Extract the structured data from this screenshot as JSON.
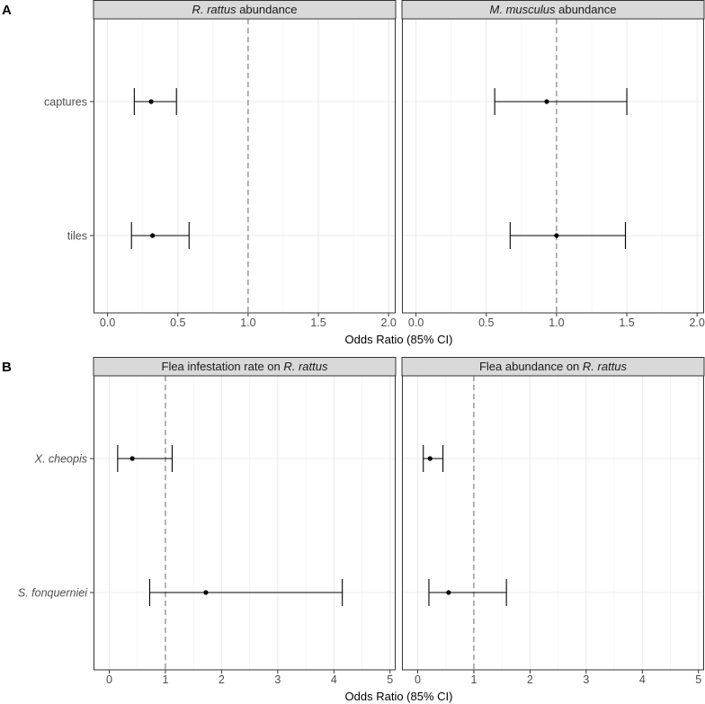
{
  "colors": {
    "strip_fill": "#d9d9d9",
    "panel_border": "#333333",
    "grid_major": "#ebebeb",
    "grid_minor": "#f5f5f5",
    "ref_line": "#8c8c8c",
    "mark": "#000000"
  },
  "chart_data": [
    {
      "section": "A",
      "type": "forest",
      "xlabel": "Odds Ratio (85% CI)",
      "categories": [
        "captures",
        "tiles"
      ],
      "category_italic": false,
      "xlim": [
        -0.1,
        2.05
      ],
      "xticks": [
        "0.0",
        "0.5",
        "1.0",
        "1.5",
        "2.0"
      ],
      "xtick_values": [
        0,
        0.5,
        1,
        1.5,
        2
      ],
      "reference": 1,
      "panels": [
        {
          "title_parts": [
            {
              "text": "R. rattus",
              "italic": true
            },
            {
              "text": " abundance",
              "italic": false
            }
          ],
          "points": [
            {
              "category": "captures",
              "estimate": 0.31,
              "low": 0.19,
              "high": 0.49
            },
            {
              "category": "tiles",
              "estimate": 0.32,
              "low": 0.17,
              "high": 0.58
            }
          ]
        },
        {
          "title_parts": [
            {
              "text": "M. musculus",
              "italic": true
            },
            {
              "text": " abundance",
              "italic": false
            }
          ],
          "points": [
            {
              "category": "captures",
              "estimate": 0.93,
              "low": 0.56,
              "high": 1.5
            },
            {
              "category": "tiles",
              "estimate": 1.0,
              "low": 0.67,
              "high": 1.49
            }
          ]
        }
      ]
    },
    {
      "section": "B",
      "type": "forest",
      "xlabel": "Odds Ratio (85% CI)",
      "categories": [
        "X. cheopis",
        "S. fonquerniei"
      ],
      "category_italic": true,
      "xlim": [
        -0.28,
        5.1
      ],
      "xticks": [
        "0",
        "1",
        "2",
        "3",
        "4",
        "5"
      ],
      "xtick_values": [
        0,
        1,
        2,
        3,
        4,
        5
      ],
      "reference": 1,
      "panels": [
        {
          "title_parts": [
            {
              "text": "Flea infestation rate on ",
              "italic": false
            },
            {
              "text": "R. rattus",
              "italic": true
            }
          ],
          "points": [
            {
              "category": "X. cheopis",
              "estimate": 0.41,
              "low": 0.15,
              "high": 1.12
            },
            {
              "category": "S. fonquerniei",
              "estimate": 1.72,
              "low": 0.72,
              "high": 4.15
            }
          ]
        },
        {
          "title_parts": [
            {
              "text": "Flea abundance on ",
              "italic": false
            },
            {
              "text": "R. rattus",
              "italic": true
            }
          ],
          "points": [
            {
              "category": "X. cheopis",
              "estimate": 0.22,
              "low": 0.1,
              "high": 0.45
            },
            {
              "category": "S. fonquerniei",
              "estimate": 0.55,
              "low": 0.2,
              "high": 1.58
            }
          ]
        }
      ]
    }
  ]
}
